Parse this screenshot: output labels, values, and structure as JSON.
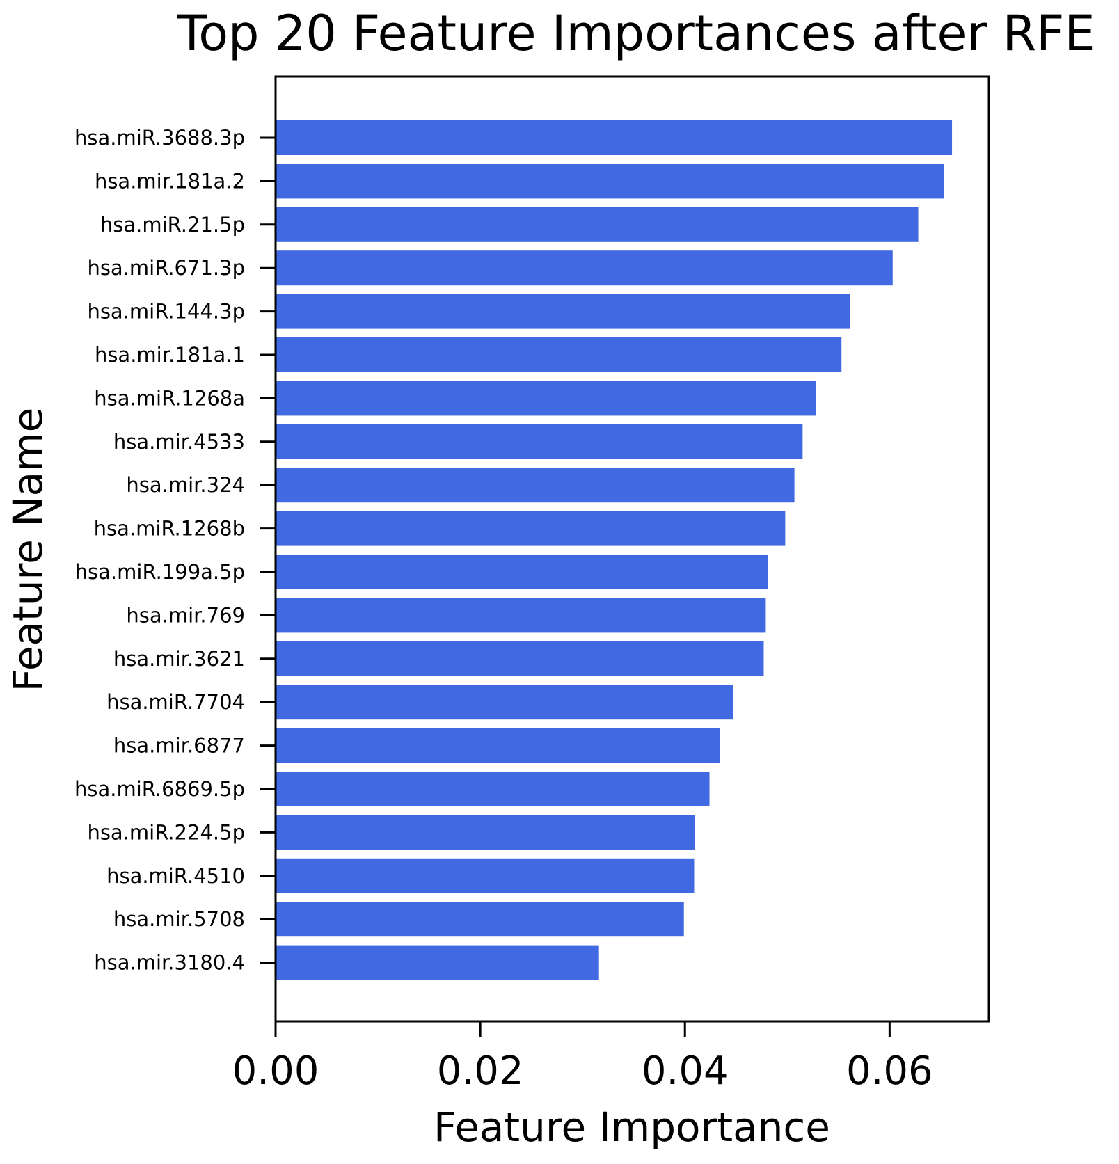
{
  "chart_data": {
    "type": "bar",
    "orientation": "horizontal",
    "title": "Top 20 Feature Importances after RFE",
    "xlabel": "Feature Importance",
    "ylabel": "Feature Name",
    "xlim": [
      0,
      0.0697
    ],
    "x_ticks": [
      "0.00",
      "0.02",
      "0.04",
      "0.06"
    ],
    "x_tick_values": [
      0,
      0.02,
      0.04,
      0.06
    ],
    "grid": false,
    "legend": "none",
    "bar_color": "#4169E1",
    "categories": [
      "hsa.miR.3688.3p",
      "hsa.mir.181a.2",
      "hsa.miR.21.5p",
      "hsa.miR.671.3p",
      "hsa.miR.144.3p",
      "hsa.mir.181a.1",
      "hsa.miR.1268a",
      "hsa.mir.4533",
      "hsa.mir.324",
      "hsa.miR.1268b",
      "hsa.miR.199a.5p",
      "hsa.mir.769",
      "hsa.mir.3621",
      "hsa.miR.7704",
      "hsa.mir.6877",
      "hsa.miR.6869.5p",
      "hsa.miR.224.5p",
      "hsa.miR.4510",
      "hsa.mir.5708",
      "hsa.mir.3180.4"
    ],
    "values": [
      0.0661,
      0.0653,
      0.0628,
      0.0603,
      0.0561,
      0.0553,
      0.0528,
      0.0515,
      0.0507,
      0.0498,
      0.0481,
      0.0479,
      0.0477,
      0.0447,
      0.0434,
      0.0424,
      0.041,
      0.0409,
      0.0399,
      0.0316
    ]
  }
}
